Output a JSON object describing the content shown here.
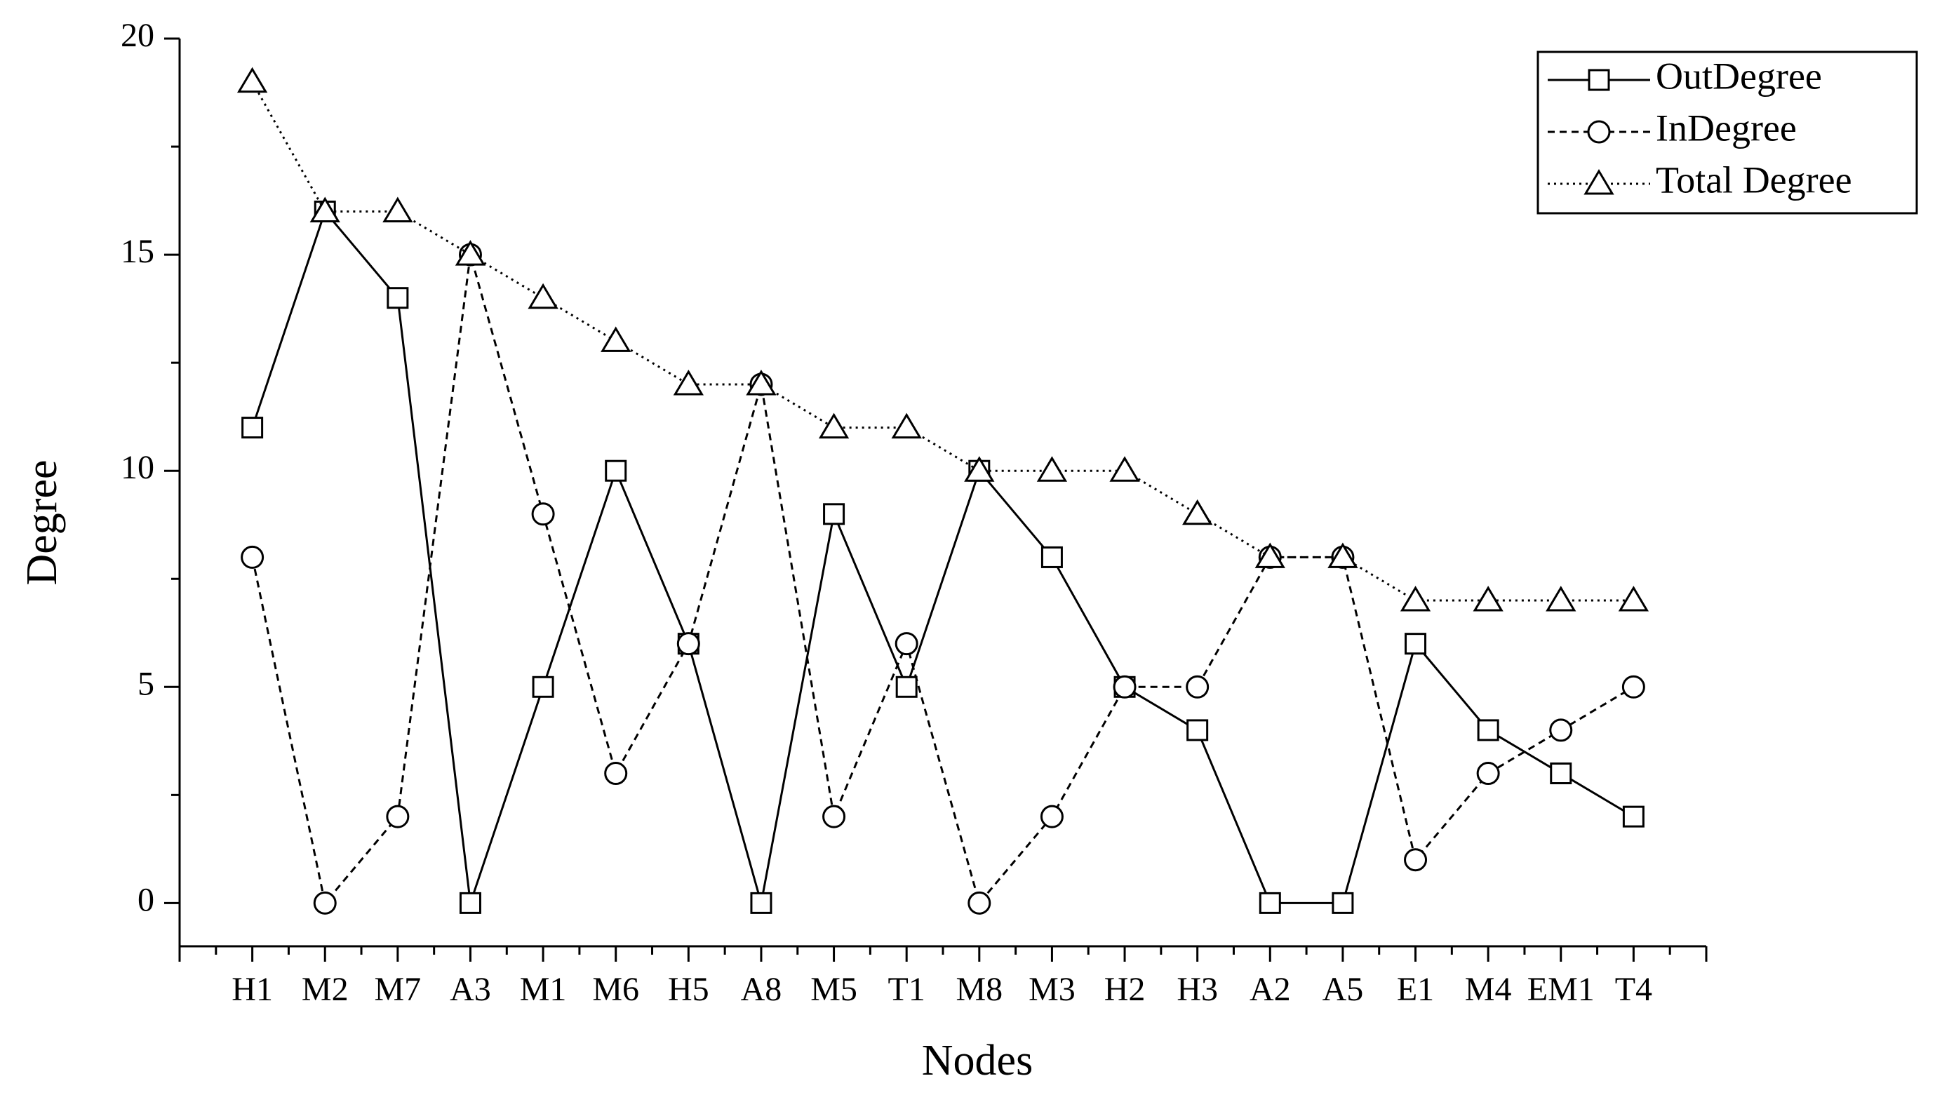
{
  "chart_data": {
    "type": "line",
    "x_label": "Nodes",
    "y_label": "Degree",
    "categories": [
      "H1",
      "M2",
      "M7",
      "A3",
      "M1",
      "M6",
      "H5",
      "A8",
      "M5",
      "T1",
      "M8",
      "M3",
      "H2",
      "H3",
      "A2",
      "A5",
      "E1",
      "M4",
      "EM1",
      "T4"
    ],
    "series": [
      {
        "name": "OutDegree",
        "color": "#000000",
        "line_style": "solid",
        "marker": "square",
        "values": [
          11,
          16,
          14,
          0,
          5,
          10,
          6,
          0,
          9,
          5,
          10,
          8,
          5,
          4,
          0,
          0,
          6,
          4,
          3,
          2
        ]
      },
      {
        "name": "InDegree",
        "color": "#000000",
        "line_style": "dashed",
        "marker": "circle",
        "values": [
          8,
          0,
          2,
          15,
          9,
          3,
          6,
          12,
          2,
          6,
          0,
          2,
          5,
          5,
          8,
          8,
          1,
          3,
          4,
          5
        ]
      },
      {
        "name": "Total Degree",
        "color": "#000000",
        "line_style": "dotted",
        "marker": "triangle",
        "values": [
          19,
          16,
          16,
          15,
          14,
          13,
          12,
          12,
          11,
          11,
          10,
          10,
          10,
          9,
          8,
          8,
          7,
          7,
          7,
          7
        ]
      }
    ],
    "ylim": [
      -1,
      20
    ],
    "yticks": [
      0,
      5,
      10,
      15,
      20
    ],
    "grid": false,
    "legend": "upper right"
  }
}
